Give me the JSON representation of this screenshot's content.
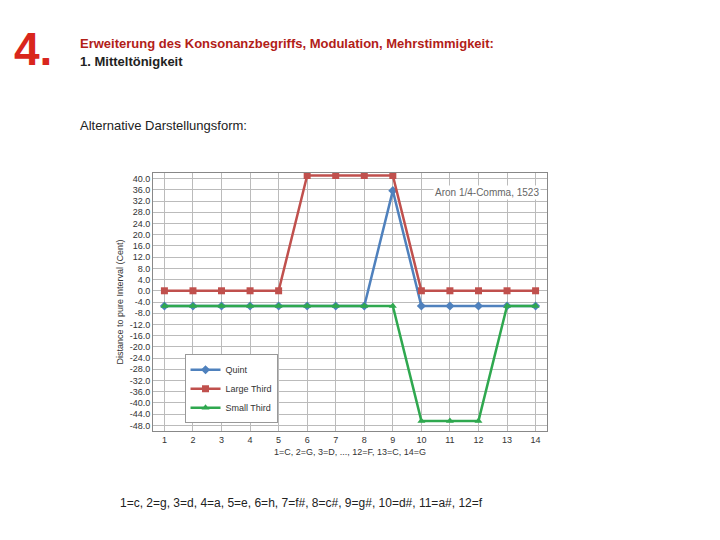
{
  "header": {
    "number": "4.",
    "title": "Erweiterung des Konsonanzbegriffs, Modulation, Mehrstimmigkeit:",
    "subtitle": "1. Mitteltönigkeit"
  },
  "intro": "Alternative Darstellungsform:",
  "caption": "1=c, 2=g, 3=d, 4=a, 5=e, 6=h, 7=f#, 8=c#, 9=g#, 10=d#, 11=a#, 12=f",
  "chart_data": {
    "type": "line",
    "annotations": [
      "Aron 1/4-Comma, 1523"
    ],
    "x_label": "1=C, 2=G, 3=D, ..., 12=F, 13=C, 14=G",
    "y_label": "Distance to pure Interval (Cent)",
    "x": [
      1,
      2,
      3,
      4,
      5,
      6,
      7,
      8,
      9,
      10,
      11,
      12,
      13,
      14
    ],
    "xlim": [
      0.6,
      14.4
    ],
    "xticks": [
      1,
      2,
      3,
      4,
      5,
      6,
      7,
      8,
      9,
      10,
      11,
      12,
      13,
      14
    ],
    "ylim": [
      -50,
      42
    ],
    "yticks": [
      {
        "value": -48,
        "label": "-48.0"
      },
      {
        "value": -44,
        "label": "-44.0"
      },
      {
        "value": -40,
        "label": "-40.0"
      },
      {
        "value": -36,
        "label": "-36.0"
      },
      {
        "value": -32,
        "label": "-32.0"
      },
      {
        "value": -28,
        "label": "-28.0"
      },
      {
        "value": -24,
        "label": "-24.0"
      },
      {
        "value": -20,
        "label": "-20.0"
      },
      {
        "value": -16,
        "label": "-16.0"
      },
      {
        "value": -12,
        "label": "-12.0"
      },
      {
        "value": -8,
        "label": "-8.0"
      },
      {
        "value": -4,
        "label": "-4.0"
      },
      {
        "value": 0,
        "label": "0.0"
      },
      {
        "value": 4,
        "label": "4.0"
      },
      {
        "value": 8,
        "label": "8.0"
      },
      {
        "value": 12,
        "label": "12.0"
      },
      {
        "value": 16,
        "label": "16.0"
      },
      {
        "value": 20,
        "label": "20.0"
      },
      {
        "value": 24,
        "label": "24.0"
      },
      {
        "value": 28,
        "label": "28.0"
      },
      {
        "value": 32,
        "label": "32.0"
      },
      {
        "value": 36,
        "label": "36.0"
      },
      {
        "value": 40,
        "label": "40.0"
      }
    ],
    "grid": true,
    "legend": "lower left",
    "series": [
      {
        "name": "Quint",
        "color": "#4f81bd",
        "marker": "diamond",
        "values": [
          -5.4,
          -5.4,
          -5.4,
          -5.4,
          -5.4,
          -5.4,
          -5.4,
          -5.4,
          35.7,
          -5.4,
          -5.4,
          -5.4,
          -5.4,
          -5.4
        ]
      },
      {
        "name": "Large Third",
        "color": "#c0504d",
        "marker": "square",
        "values": [
          0,
          0,
          0,
          0,
          0,
          41.1,
          41.1,
          41.1,
          41.1,
          0,
          0,
          0,
          0,
          0
        ]
      },
      {
        "name": "Small Third",
        "color": "#2fa84f",
        "marker": "triangle-up",
        "values": [
          -5.4,
          -5.4,
          -5.4,
          -5.4,
          -5.4,
          -5.4,
          -5.4,
          -5.4,
          -5.4,
          -46.4,
          -46.4,
          -46.4,
          -5.4,
          -5.4
        ]
      }
    ]
  }
}
